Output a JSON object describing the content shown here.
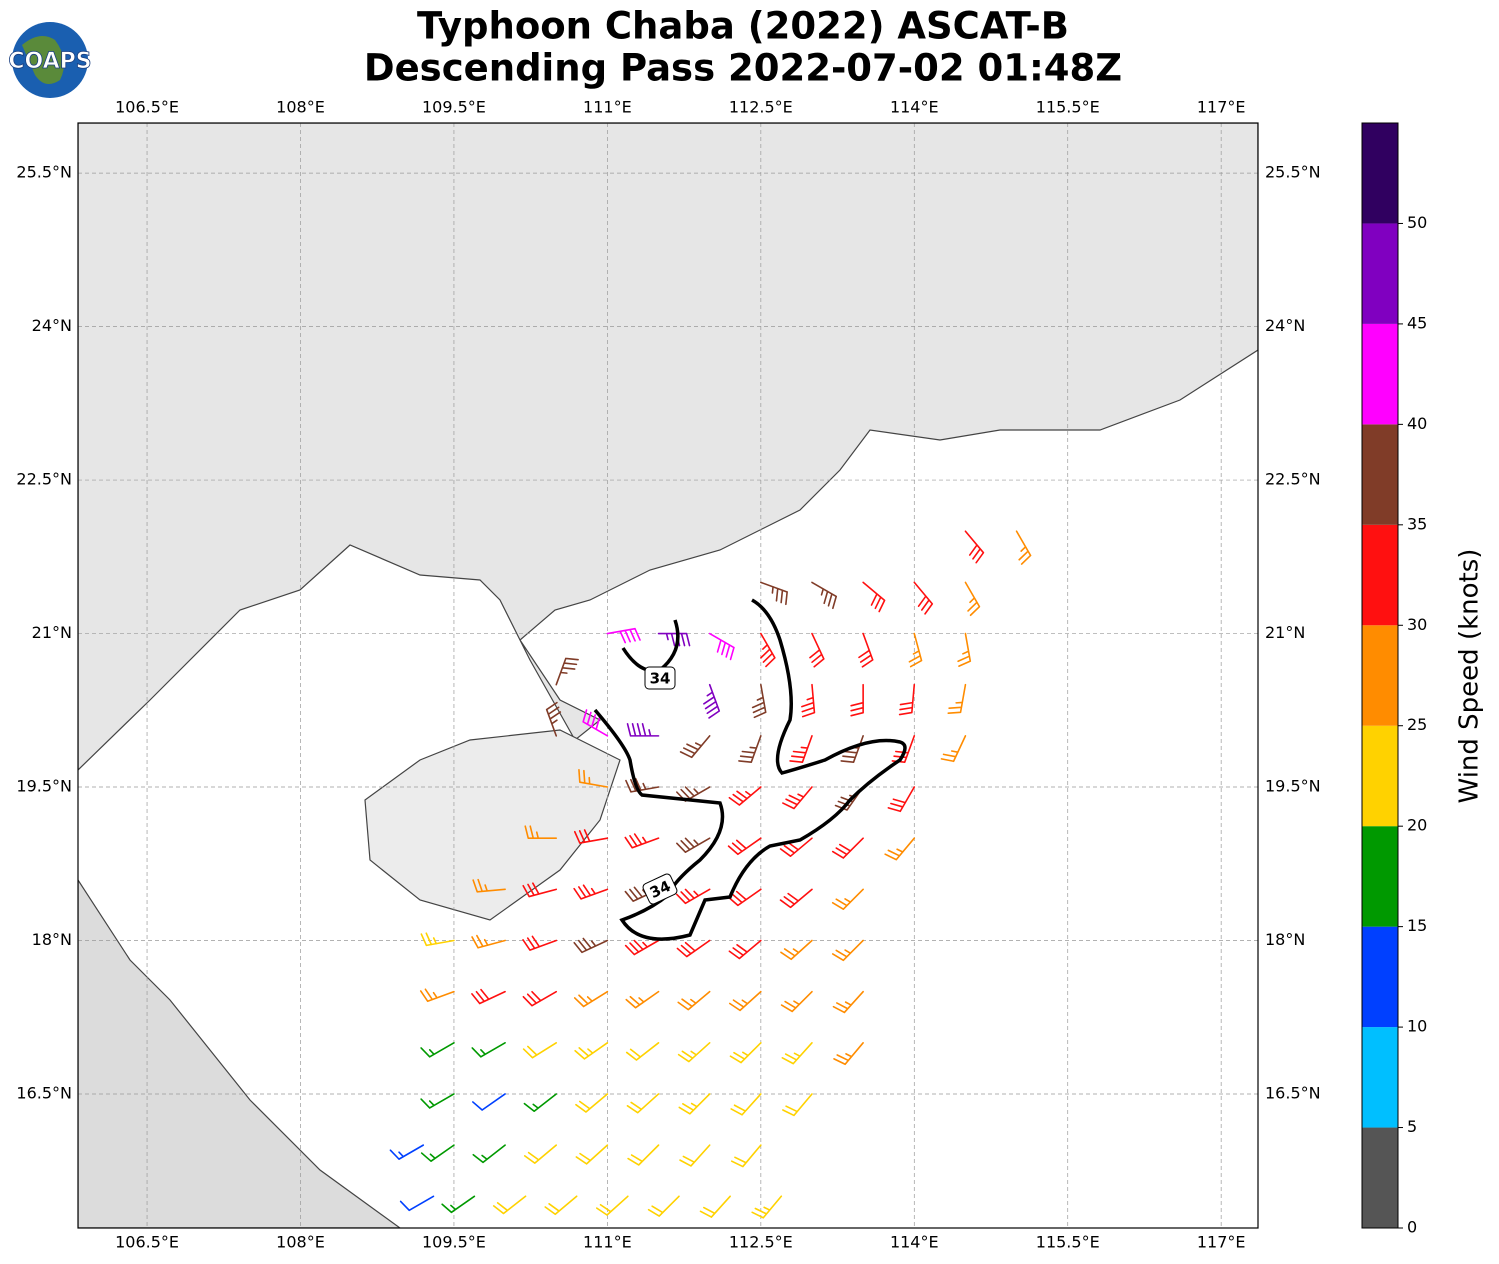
{
  "logo": "COAPS",
  "chart_data": {
    "type": "wind-barb-map",
    "title": "Typhoon Chaba (2022) ASCAT-B",
    "subtitle": "Descending Pass 2022-07-02 01:48Z",
    "xlim": [
      105.825,
      117.36
    ],
    "ylim": [
      15.19,
      25.99
    ],
    "xticks": [
      {
        "value": 106.5,
        "label": "106.5°E"
      },
      {
        "value": 108,
        "label": "108°E"
      },
      {
        "value": 109.5,
        "label": "109.5°E"
      },
      {
        "value": 111,
        "label": "111°E"
      },
      {
        "value": 112.5,
        "label": "112.5°E"
      },
      {
        "value": 114,
        "label": "114°E"
      },
      {
        "value": 115.5,
        "label": "115.5°E"
      },
      {
        "value": 117,
        "label": "117°E"
      }
    ],
    "yticks": [
      {
        "value": 16.5,
        "label": "16.5°N"
      },
      {
        "value": 18,
        "label": "18°N"
      },
      {
        "value": 19.5,
        "label": "19.5°N"
      },
      {
        "value": 21,
        "label": "21°N"
      },
      {
        "value": 22.5,
        "label": "22.5°N"
      },
      {
        "value": 24,
        "label": "24°N"
      },
      {
        "value": 25.5,
        "label": "25.5°N"
      }
    ],
    "grid": true,
    "contour_labels": [
      "34",
      "34"
    ],
    "colorbar": {
      "label": "Wind Speed (knots)",
      "lim": [
        0,
        55
      ],
      "ticks": [
        0,
        5,
        10,
        15,
        20,
        25,
        30,
        35,
        40,
        45,
        50
      ],
      "bounds": [
        0,
        5,
        10,
        15,
        20,
        25,
        30,
        35,
        40,
        45,
        50,
        55
      ],
      "colors": [
        "#555555",
        "#00bfff",
        "#0040ff",
        "#009900",
        "#ffd200",
        "#ff8c00",
        "#ff1010",
        "#803c28",
        "#ff00ff",
        "#8000c0",
        "#300060"
      ]
    },
    "barbs": {
      "lon": [
        114.5,
        115,
        112.5,
        113,
        113.5,
        114,
        114.5,
        111,
        111.5,
        112,
        112.5,
        113,
        113.5,
        114,
        114.5,
        110.5,
        112,
        112.5,
        113,
        113.5,
        114,
        114.5,
        110.5,
        111,
        111.5,
        112,
        112.5,
        113,
        113.5,
        114,
        114.5,
        111,
        111.5,
        112,
        112.5,
        113,
        113.5,
        114,
        110.5,
        111,
        111.5,
        112,
        112.5,
        113,
        113.5,
        114,
        110,
        110.5,
        111,
        111.5,
        112,
        112.5,
        113,
        113.5,
        109.5,
        110,
        110.5,
        111,
        111.5,
        112,
        112.5,
        113,
        113.5,
        109.5,
        110,
        110.5,
        111,
        111.5,
        112,
        112.5,
        113,
        113.5,
        109.5,
        110,
        110.5,
        111,
        111.5,
        112,
        112.5,
        113,
        113.5,
        109.5,
        110,
        110.5,
        111,
        111.5,
        112,
        112.5,
        113,
        109.2,
        109.5,
        110,
        110.5,
        111,
        111.5,
        112,
        112.5,
        109.3,
        109.7,
        110.2,
        110.7,
        111.2,
        111.7,
        112.2,
        112.7
      ],
      "lat": [
        22,
        22,
        21.5,
        21.5,
        21.5,
        21.5,
        21.5,
        21,
        21,
        21,
        21,
        21,
        21,
        21,
        21,
        20.5,
        20.5,
        20.5,
        20.5,
        20.5,
        20.5,
        20.5,
        20,
        20,
        20,
        20,
        20,
        20,
        20,
        20,
        20,
        19.5,
        19.5,
        19.5,
        19.5,
        19.5,
        19.5,
        19.5,
        19,
        19,
        19,
        19,
        19,
        19,
        19,
        19,
        18.5,
        18.5,
        18.5,
        18.5,
        18.5,
        18.5,
        18.5,
        18.5,
        18,
        18,
        18,
        18,
        18,
        18,
        18,
        18,
        18,
        17.5,
        17.5,
        17.5,
        17.5,
        17.5,
        17.5,
        17.5,
        17.5,
        17.5,
        17,
        17,
        17,
        17,
        17,
        17,
        17,
        17,
        17,
        16.5,
        16.5,
        16.5,
        16.5,
        16.5,
        16.5,
        16.5,
        16.5,
        16,
        16,
        16,
        16,
        16,
        16,
        16,
        16,
        15.5,
        15.5,
        15.5,
        15.5,
        15.5,
        15.5,
        15.5,
        15.5
      ],
      "speed": [
        30,
        25,
        35,
        35,
        30,
        30,
        28,
        40,
        45,
        40,
        33,
        32,
        30,
        28,
        27,
        37,
        48,
        38,
        33,
        32,
        30,
        26,
        37,
        42,
        45,
        38,
        37,
        34,
        36,
        30,
        27,
        28,
        37,
        37,
        33,
        33,
        36,
        30,
        27,
        32,
        33,
        37,
        32,
        32,
        30,
        28,
        27,
        30,
        33,
        35,
        33,
        30,
        30,
        28,
        24,
        28,
        32,
        35,
        33,
        30,
        30,
        28,
        28,
        26,
        31,
        30,
        28,
        28,
        27,
        27,
        26,
        26,
        18,
        18,
        22,
        23,
        22,
        23,
        24,
        24,
        26,
        17,
        12,
        16,
        21,
        22,
        23,
        22,
        22,
        13,
        16,
        18,
        21,
        22,
        21,
        22,
        22,
        12,
        17,
        22,
        21,
        22,
        22,
        22,
        24
      ],
      "dir": [
        140,
        150,
        110,
        120,
        130,
        140,
        150,
        80,
        90,
        120,
        150,
        155,
        160,
        165,
        170,
        20,
        160,
        170,
        175,
        180,
        185,
        190,
        340,
        300,
        270,
        220,
        200,
        200,
        200,
        200,
        205,
        280,
        260,
        240,
        230,
        220,
        215,
        210,
        270,
        260,
        250,
        240,
        235,
        230,
        225,
        220,
        265,
        255,
        250,
        245,
        240,
        235,
        230,
        225,
        260,
        255,
        250,
        245,
        240,
        235,
        230,
        228,
        225,
        250,
        245,
        240,
        238,
        235,
        230,
        228,
        225,
        222,
        240,
        240,
        238,
        235,
        232,
        228,
        225,
        222,
        220,
        240,
        235,
        232,
        230,
        228,
        225,
        222,
        220,
        240,
        235,
        232,
        230,
        228,
        225,
        222,
        220,
        240,
        235,
        232,
        230,
        228,
        225,
        222,
        220
      ]
    }
  }
}
